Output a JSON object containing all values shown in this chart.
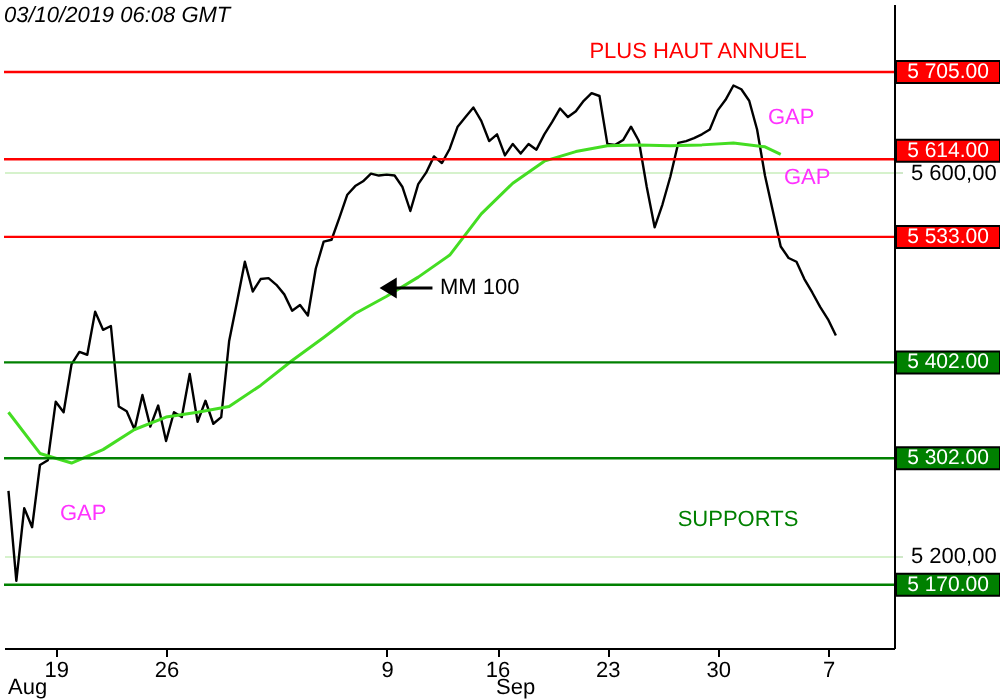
{
  "chart_data": {
    "type": "line",
    "xlim": [
      "2019-08-15T17:12",
      "2019-10-11T04:30"
    ],
    "ylim": [
      5104,
      5776
    ],
    "xticks": [
      {
        "value": "2019-08-19",
        "label": "19"
      },
      {
        "value": "2019-08-26",
        "label": "26"
      },
      {
        "value": "2019-09-09",
        "label": "9"
      },
      {
        "value": "2019-09-16",
        "label": "16"
      },
      {
        "value": "2019-09-23",
        "label": "23"
      },
      {
        "value": "2019-09-30",
        "label": "30"
      },
      {
        "value": "2019-10-07",
        "label": "7"
      }
    ],
    "yticks": [
      {
        "value": 5200,
        "label": "5 200,00"
      },
      {
        "value": 5600,
        "label": "5 600,00"
      }
    ],
    "grid": "y",
    "marker": "none",
    "line_style": "solid",
    "series": [
      {
        "color": "#000000",
        "x": [
          "2019-08-16T00:00",
          "2019-08-16T12:00",
          "2019-08-17T00:00",
          "2019-08-17T12:00",
          "2019-08-18T00:00",
          "2019-08-18T12:00",
          "2019-08-19T00:00",
          "2019-08-19T12:00",
          "2019-08-20T00:00",
          "2019-08-20T12:00",
          "2019-08-21T00:00",
          "2019-08-21T12:00",
          "2019-08-22T00:00",
          "2019-08-22T12:00",
          "2019-08-23T00:00",
          "2019-08-23T12:00",
          "2019-08-24T00:00",
          "2019-08-24T12:00",
          "2019-08-25T00:00",
          "2019-08-25T12:00",
          "2019-08-26T00:00",
          "2019-08-26T12:00",
          "2019-08-27T00:00",
          "2019-08-27T12:00",
          "2019-08-28T00:00",
          "2019-08-28T12:00",
          "2019-08-29T00:00",
          "2019-08-29T12:00",
          "2019-08-30T00:00",
          "2019-08-30T12:00",
          "2019-08-31T00:00",
          "2019-08-31T12:00",
          "2019-09-01T00:00",
          "2019-09-01T12:00",
          "2019-09-02T00:00",
          "2019-09-02T12:00",
          "2019-09-03T00:00",
          "2019-09-03T12:00",
          "2019-09-04T00:00",
          "2019-09-04T12:00",
          "2019-09-05T00:00",
          "2019-09-05T12:00",
          "2019-09-06T00:00",
          "2019-09-06T12:00",
          "2019-09-07T00:00",
          "2019-09-07T12:00",
          "2019-09-08T00:00",
          "2019-09-08T12:00",
          "2019-09-09T00:00",
          "2019-09-09T12:00",
          "2019-09-10T00:00",
          "2019-09-10T12:00",
          "2019-09-11T00:00",
          "2019-09-11T12:00",
          "2019-09-12T00:00",
          "2019-09-12T12:00",
          "2019-09-13T00:00",
          "2019-09-13T12:00",
          "2019-09-14T00:00",
          "2019-09-14T12:00",
          "2019-09-15T00:00",
          "2019-09-15T12:00",
          "2019-09-16T00:00",
          "2019-09-16T12:00",
          "2019-09-17T00:00",
          "2019-09-17T12:00",
          "2019-09-18T00:00",
          "2019-09-18T12:00",
          "2019-09-19T00:00",
          "2019-09-19T12:00",
          "2019-09-20T00:00",
          "2019-09-20T12:00",
          "2019-09-21T00:00",
          "2019-09-21T12:00",
          "2019-09-22T00:00",
          "2019-09-22T12:00",
          "2019-09-23T00:00",
          "2019-09-23T12:00",
          "2019-09-24T00:00",
          "2019-09-24T12:00",
          "2019-09-25T00:00",
          "2019-09-25T12:00",
          "2019-09-26T00:00",
          "2019-09-26T12:00",
          "2019-09-27T00:00",
          "2019-09-27T12:00",
          "2019-09-28T00:00",
          "2019-09-28T12:00",
          "2019-09-29T00:00",
          "2019-09-29T12:00",
          "2019-09-30T00:00",
          "2019-09-30T12:00",
          "2019-10-01T00:00",
          "2019-10-01T12:00",
          "2019-10-02T00:00",
          "2019-10-02T12:00",
          "2019-10-03T00:00",
          "2019-10-03T12:00",
          "2019-10-04T00:00",
          "2019-10-04T12:00",
          "2019-10-05T00:00",
          "2019-10-05T12:00",
          "2019-10-06T00:00",
          "2019-10-06T12:00",
          "2019-10-07T00:00",
          "2019-10-07T12:00"
        ],
        "values": [
          5268,
          5174,
          5250,
          5230,
          5295,
          5300,
          5361,
          5350,
          5400,
          5413,
          5410,
          5455,
          5436,
          5440,
          5356,
          5351,
          5332,
          5368,
          5335,
          5357,
          5320,
          5350,
          5345,
          5390,
          5340,
          5362,
          5338,
          5345,
          5424,
          5465,
          5507,
          5476,
          5489,
          5490,
          5483,
          5473,
          5456,
          5462,
          5451,
          5500,
          5528,
          5530,
          5553,
          5577,
          5586,
          5591,
          5599,
          5597,
          5598,
          5597,
          5585,
          5560,
          5588,
          5600,
          5617,
          5610,
          5625,
          5648,
          5658,
          5668,
          5654,
          5633,
          5640,
          5618,
          5630,
          5620,
          5630,
          5624,
          5640,
          5653,
          5667,
          5658,
          5664,
          5675,
          5683,
          5680,
          5630,
          5629,
          5634,
          5648,
          5633,
          5585,
          5543,
          5567,
          5596,
          5631,
          5633,
          5636,
          5640,
          5645,
          5665,
          5676,
          5691,
          5687,
          5675,
          5645,
          5597,
          5560,
          5523,
          5511,
          5507,
          5489,
          5475,
          5460,
          5447,
          5430
        ]
      },
      {
        "color": "#44dd22",
        "x": [
          "2019-08-16",
          "2019-08-18",
          "2019-08-20",
          "2019-08-22",
          "2019-08-24",
          "2019-08-26",
          "2019-08-28",
          "2019-08-30",
          "2019-09-01",
          "2019-09-03",
          "2019-09-05",
          "2019-09-07",
          "2019-09-09",
          "2019-09-11",
          "2019-09-13",
          "2019-09-15",
          "2019-09-17",
          "2019-09-19",
          "2019-09-21",
          "2019-09-23",
          "2019-09-25",
          "2019-09-27",
          "2019-09-29",
          "2019-10-01",
          "2019-10-03",
          "2019-10-04"
        ],
        "values": [
          5350,
          5307,
          5297,
          5311,
          5332,
          5345,
          5350,
          5356,
          5378,
          5404,
          5428,
          5453,
          5471,
          5491,
          5514,
          5557,
          5589,
          5612,
          5622,
          5628,
          5629,
          5628,
          5629,
          5631,
          5627,
          5619
        ]
      }
    ],
    "ref_lines": [
      {
        "axis": "y",
        "value": 5705,
        "label": "5 705.00",
        "color": "#ff0000"
      },
      {
        "axis": "y",
        "value": 5614,
        "label": "5 614.00",
        "color": "#ff0000"
      },
      {
        "axis": "y",
        "value": 5533,
        "label": "5 533.00",
        "color": "#ff0000"
      },
      {
        "axis": "y",
        "value": 5402,
        "label": "5 402.00",
        "color": "#008000"
      },
      {
        "axis": "y",
        "value": 5302,
        "label": "5 302.00",
        "color": "#008000"
      },
      {
        "axis": "y",
        "value": 5170,
        "label": "5 170.00",
        "color": "#008000"
      }
    ],
    "annotations": [
      "03/10/2019  06:08 GMT",
      "PLUS HAUT ANNUEL",
      "GAP",
      "GAP",
      "GAP",
      "MM 100",
      "SUPPORTS",
      "Aug",
      "Sep"
    ]
  }
}
